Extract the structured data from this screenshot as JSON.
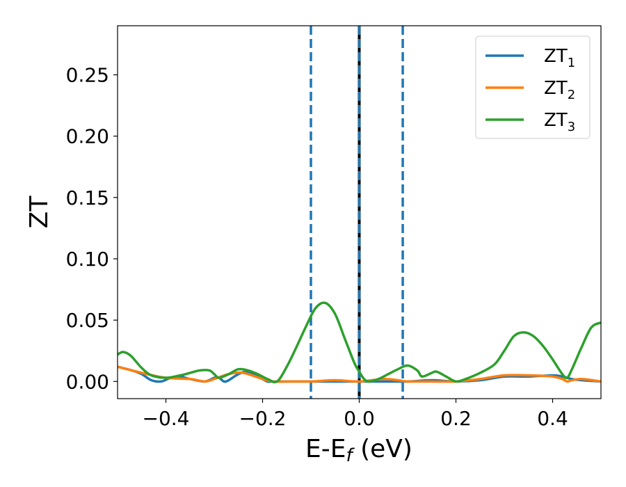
{
  "chart_data": {
    "type": "line",
    "title": "",
    "xlabel": "E-E",
    "xlabel_sub": "f",
    "xlabel_unit": " (eV)",
    "ylabel": "ZT",
    "xlim": [
      -0.5,
      0.5
    ],
    "ylim": [
      -0.014,
      0.29
    ],
    "xticks": [
      -0.4,
      -0.2,
      0.0,
      0.2,
      0.4
    ],
    "xtick_labels": [
      "−0.4",
      "−0.2",
      "0.0",
      "0.2",
      "0.4"
    ],
    "yticks": [
      0.0,
      0.05,
      0.1,
      0.15,
      0.2,
      0.25
    ],
    "ytick_labels": [
      "0.00",
      "0.05",
      "0.10",
      "0.15",
      "0.20",
      "0.25"
    ],
    "grid": false,
    "legend_position": "top-right",
    "vlines": [
      {
        "x": -0.1,
        "style": "dashed",
        "color": "#1f77b4"
      },
      {
        "x": 0.0,
        "style": "solid",
        "color": "#000000"
      },
      {
        "x": 0.0,
        "style": "dashed",
        "color": "#1f77b4"
      },
      {
        "x": 0.09,
        "style": "dashed",
        "color": "#1f77b4"
      }
    ],
    "series": [
      {
        "name": "ZT",
        "name_sub": "1",
        "color": "#1f77b4",
        "x": [
          -0.5,
          -0.47,
          -0.45,
          -0.43,
          -0.41,
          -0.39,
          -0.37,
          -0.35,
          -0.32,
          -0.3,
          -0.29,
          -0.28,
          -0.27,
          -0.25,
          -0.23,
          -0.21,
          -0.19,
          -0.18,
          -0.15,
          -0.1,
          -0.05,
          0.0,
          0.05,
          0.1,
          0.15,
          0.2,
          0.25,
          0.3,
          0.35,
          0.4,
          0.42,
          0.44,
          0.46,
          0.5
        ],
        "y": [
          0.012,
          0.009,
          0.006,
          0.001,
          0.0,
          0.003,
          0.004,
          0.002,
          0.0,
          0.003,
          0.003,
          0.0,
          0.001,
          0.006,
          0.008,
          0.004,
          0.0,
          0.0,
          0.0,
          0.0,
          0.0,
          0.0,
          0.0,
          0.0,
          0.001,
          0.0,
          0.001,
          0.004,
          0.004,
          0.005,
          0.004,
          0.002,
          0.001,
          0.0
        ]
      },
      {
        "name": "ZT",
        "name_sub": "2",
        "color": "#ff7f0e",
        "x": [
          -0.5,
          -0.45,
          -0.4,
          -0.35,
          -0.32,
          -0.3,
          -0.27,
          -0.24,
          -0.2,
          -0.18,
          -0.15,
          -0.1,
          -0.05,
          0.0,
          0.05,
          0.08,
          0.1,
          0.15,
          0.2,
          0.25,
          0.3,
          0.35,
          0.4,
          0.42,
          0.43,
          0.44,
          0.46,
          0.5
        ],
        "y": [
          0.012,
          0.007,
          0.003,
          0.002,
          0.0,
          0.002,
          0.006,
          0.007,
          0.002,
          0.0,
          0.0,
          0.0,
          0.001,
          0.0,
          0.002,
          0.001,
          0.0,
          0.0,
          0.0,
          0.002,
          0.005,
          0.005,
          0.004,
          0.002,
          0.0,
          0.001,
          0.002,
          0.0
        ]
      },
      {
        "name": "ZT",
        "name_sub": "3",
        "color": "#2ca02c",
        "x": [
          -0.5,
          -0.49,
          -0.48,
          -0.47,
          -0.45,
          -0.43,
          -0.4,
          -0.37,
          -0.35,
          -0.33,
          -0.31,
          -0.3,
          -0.29,
          -0.27,
          -0.25,
          -0.23,
          -0.21,
          -0.19,
          -0.17,
          -0.15,
          -0.13,
          -0.11,
          -0.09,
          -0.07,
          -0.05,
          -0.03,
          -0.01,
          0.0,
          0.01,
          0.02,
          0.04,
          0.06,
          0.08,
          0.1,
          0.12,
          0.13,
          0.15,
          0.16,
          0.18,
          0.2,
          0.22,
          0.25,
          0.28,
          0.3,
          0.32,
          0.34,
          0.36,
          0.38,
          0.4,
          0.42,
          0.43,
          0.44,
          0.46,
          0.48,
          0.5
        ],
        "y": [
          0.022,
          0.024,
          0.023,
          0.02,
          0.011,
          0.005,
          0.003,
          0.005,
          0.007,
          0.009,
          0.009,
          0.006,
          0.003,
          0.006,
          0.01,
          0.009,
          0.006,
          0.002,
          0.0,
          0.012,
          0.028,
          0.045,
          0.06,
          0.064,
          0.055,
          0.035,
          0.015,
          0.008,
          0.002,
          0.0,
          0.002,
          0.006,
          0.01,
          0.013,
          0.009,
          0.004,
          0.007,
          0.008,
          0.004,
          0.0,
          0.002,
          0.007,
          0.014,
          0.025,
          0.037,
          0.04,
          0.037,
          0.029,
          0.018,
          0.006,
          0.003,
          0.01,
          0.028,
          0.044,
          0.048
        ]
      }
    ]
  }
}
